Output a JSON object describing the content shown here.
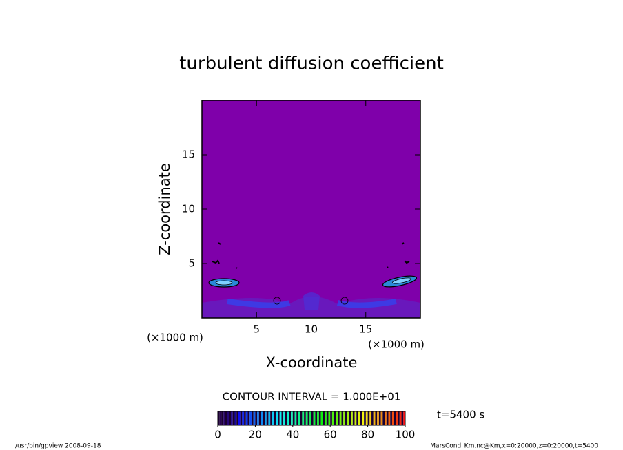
{
  "chart_data": {
    "type": "contour",
    "title": "turbulent diffusion coefficient",
    "x_label": "X-coordinate",
    "y_label": "Z-coordinate",
    "x_unit": "(×1000 m)",
    "y_unit": "(×1000 m)",
    "xlim": [
      0,
      20
    ],
    "ylim": [
      0,
      20
    ],
    "xticks": [
      5,
      10,
      15
    ],
    "yticks": [
      5,
      10,
      15
    ],
    "field_color": "#7f00aa",
    "contour_interval": "CONTOUR INTERVAL = 1.000E+01",
    "time_label": "t=5400 s",
    "colorbar_lim": [
      0,
      100
    ],
    "colorbar_ticks": [
      0,
      20,
      40,
      60,
      80,
      100
    ],
    "footer_left": "/usr/bin/gpview   2008-09-18",
    "footer_right": "MarsCond_Km.nc@Km,x=0:20000,z=0:20000,t=5400"
  }
}
